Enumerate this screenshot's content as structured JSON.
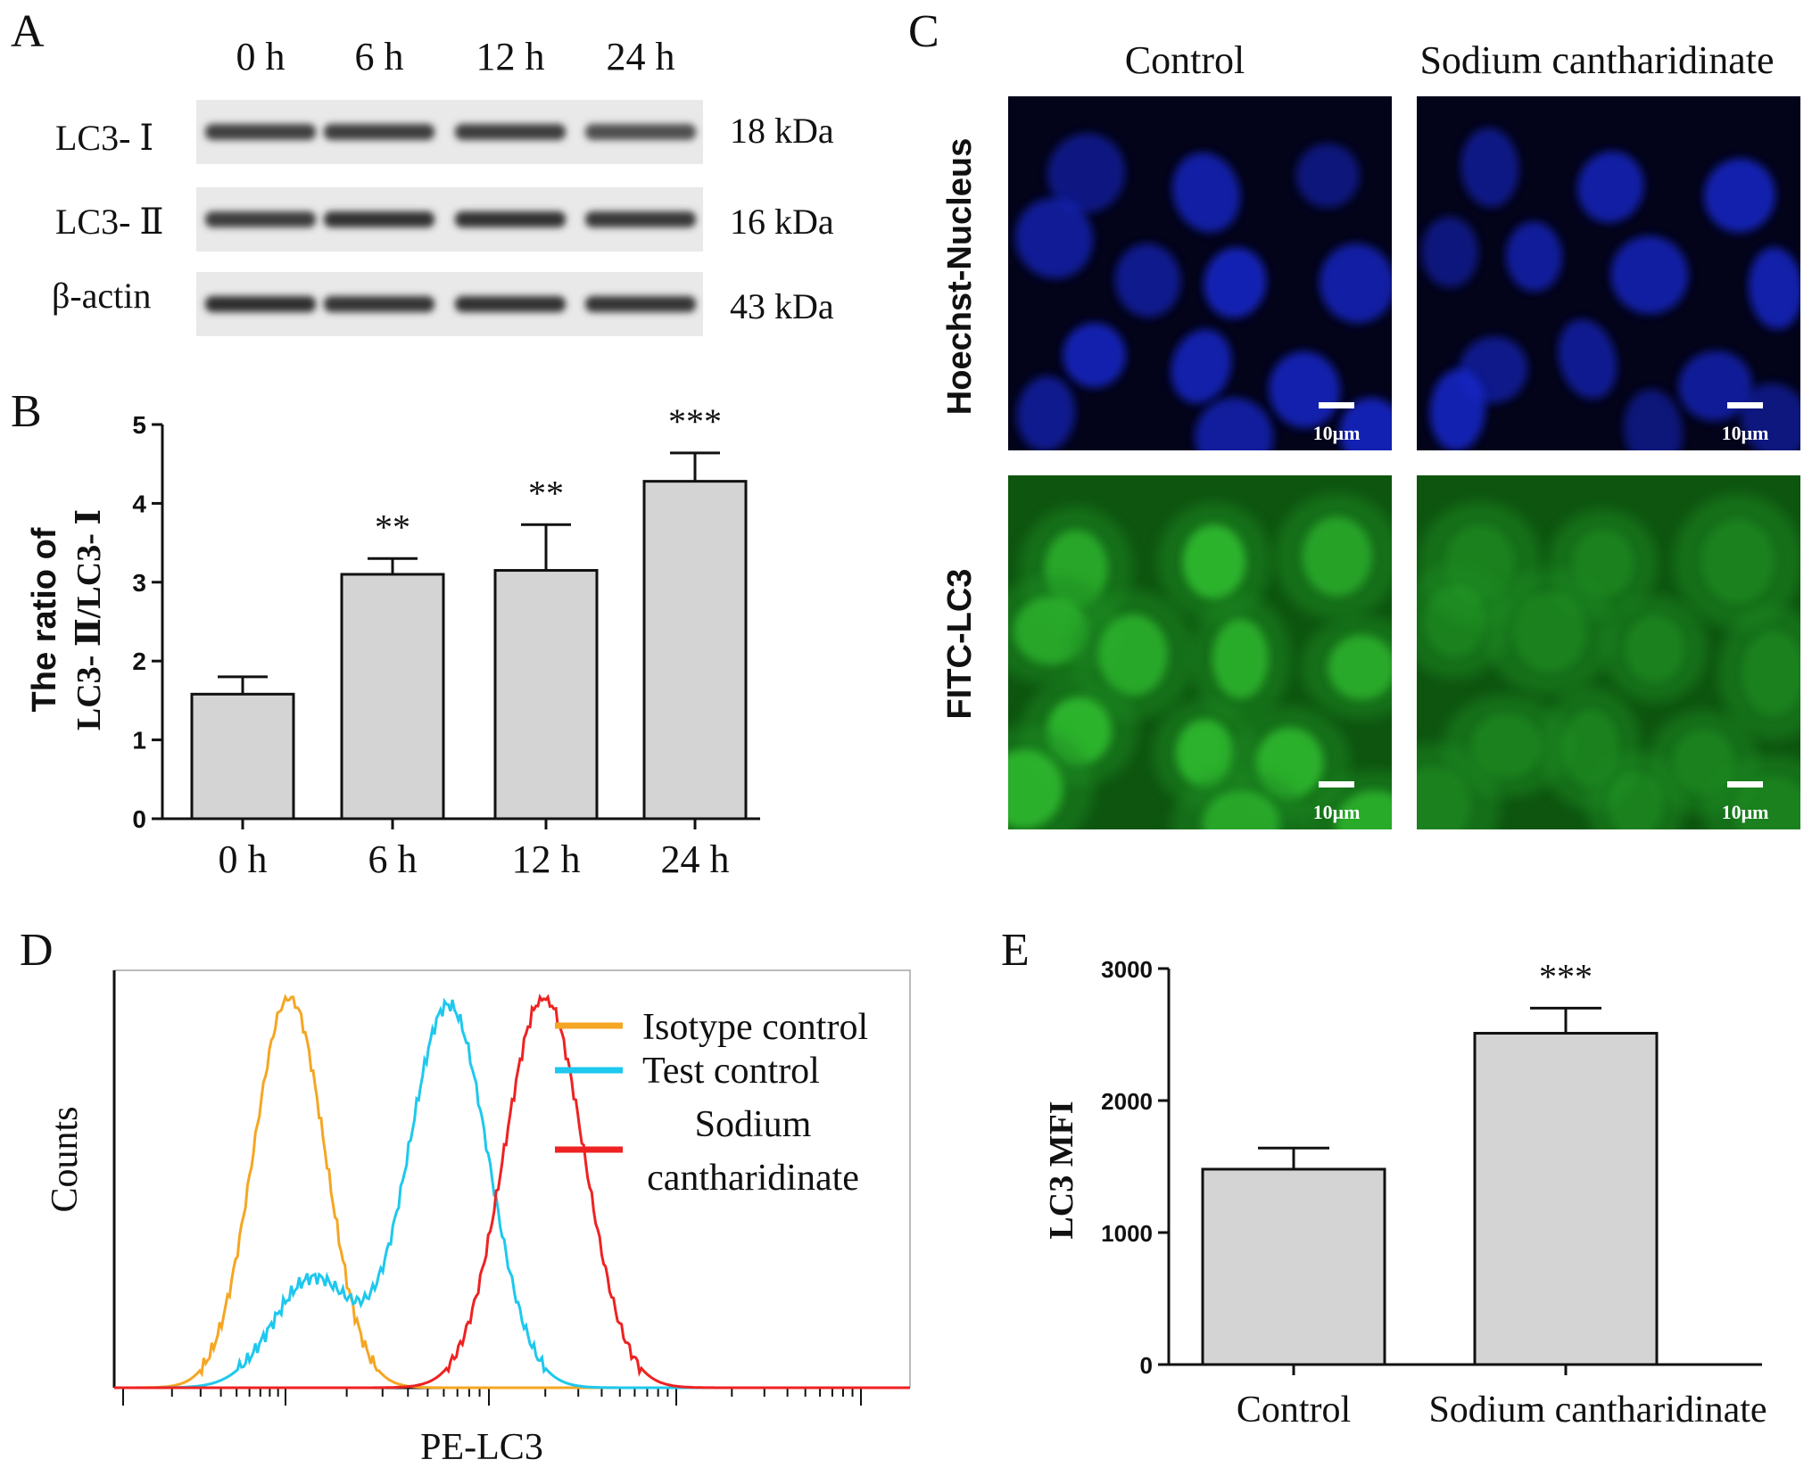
{
  "panels": {
    "a": {
      "letter": "A",
      "time_labels": [
        "0 h",
        "6 h",
        "12 h",
        "24 h"
      ],
      "bands": [
        {
          "label": "LC3- Ⅰ",
          "kda": "18 kDa",
          "intensity": [
            0.82,
            0.85,
            0.84,
            0.72
          ]
        },
        {
          "label": "LC3- Ⅱ",
          "kda": "16 kDa",
          "intensity": [
            0.86,
            0.94,
            0.92,
            0.88
          ]
        },
        {
          "label": "β-actin",
          "kda": "43 kDa",
          "intensity": [
            0.95,
            0.9,
            0.92,
            0.9
          ]
        }
      ]
    },
    "b": {
      "letter": "B"
    },
    "c": {
      "letter": "C",
      "col_labels": [
        "Control",
        "Sodium cantharidinate"
      ],
      "row_labels": [
        "Hoechst-Nucleus",
        "FITC-LC3"
      ],
      "scale_label": "10μm",
      "colors": {
        "nucleus": "#1428c8",
        "nucleus_bg": "#03031a",
        "lc3": "#2eb82e",
        "lc3_bg": "#052a05"
      }
    },
    "d": {
      "letter": "D",
      "ylabel": "Counts",
      "xlabel": "PE-LC3",
      "legend": [
        {
          "label": "Isotype control",
          "color": "#f5a623"
        },
        {
          "label": "Test control",
          "color": "#1ec8ee"
        },
        {
          "label": "Sodium",
          "label2": "cantharidinate",
          "color": "#ee2222"
        }
      ]
    },
    "e": {
      "letter": "E"
    }
  },
  "chart_data": [
    {
      "id": "B",
      "type": "bar",
      "categories": [
        "0 h",
        "6 h",
        "12 h",
        "24 h"
      ],
      "values": [
        1.58,
        3.1,
        3.15,
        4.28
      ],
      "errors": [
        0.22,
        0.2,
        0.58,
        0.36
      ],
      "significance": [
        "",
        "**",
        "**",
        "***"
      ],
      "ylabel_line1": "The ratio of",
      "ylabel_line2": "LC3- Ⅱ/LC3- Ⅰ",
      "ylim": [
        0,
        5
      ],
      "yticks": [
        "0",
        "1",
        "2",
        "3",
        "4",
        "5"
      ],
      "bar_color": "#d4d4d4"
    },
    {
      "id": "E",
      "type": "bar",
      "categories": [
        "Control",
        "Sodium cantharidinate"
      ],
      "values": [
        1480,
        2510
      ],
      "errors": [
        160,
        190
      ],
      "significance": [
        "",
        "***"
      ],
      "ylabel": "LC3 MFI",
      "ylim": [
        0,
        3000
      ],
      "yticks": [
        "0",
        "1000",
        "2000",
        "3000"
      ],
      "bar_color": "#d4d4d4"
    },
    {
      "id": "D",
      "type": "line",
      "xscale": "log",
      "xlabel": "PE-LC3",
      "ylabel": "Counts",
      "series": [
        {
          "name": "Isotype control",
          "color": "#f5a623",
          "peaks": [
            {
              "x": 0.22,
              "height": 1.0,
              "width": 0.045
            }
          ]
        },
        {
          "name": "Test control",
          "color": "#1ec8ee",
          "peaks": [
            {
              "x": 0.42,
              "height": 0.98,
              "width": 0.05
            },
            {
              "x": 0.25,
              "height": 0.28,
              "width": 0.05
            }
          ]
        },
        {
          "name": "Sodium cantharidinate",
          "color": "#ee2222",
          "peaks": [
            {
              "x": 0.54,
              "height": 1.0,
              "width": 0.05
            }
          ]
        }
      ]
    }
  ]
}
